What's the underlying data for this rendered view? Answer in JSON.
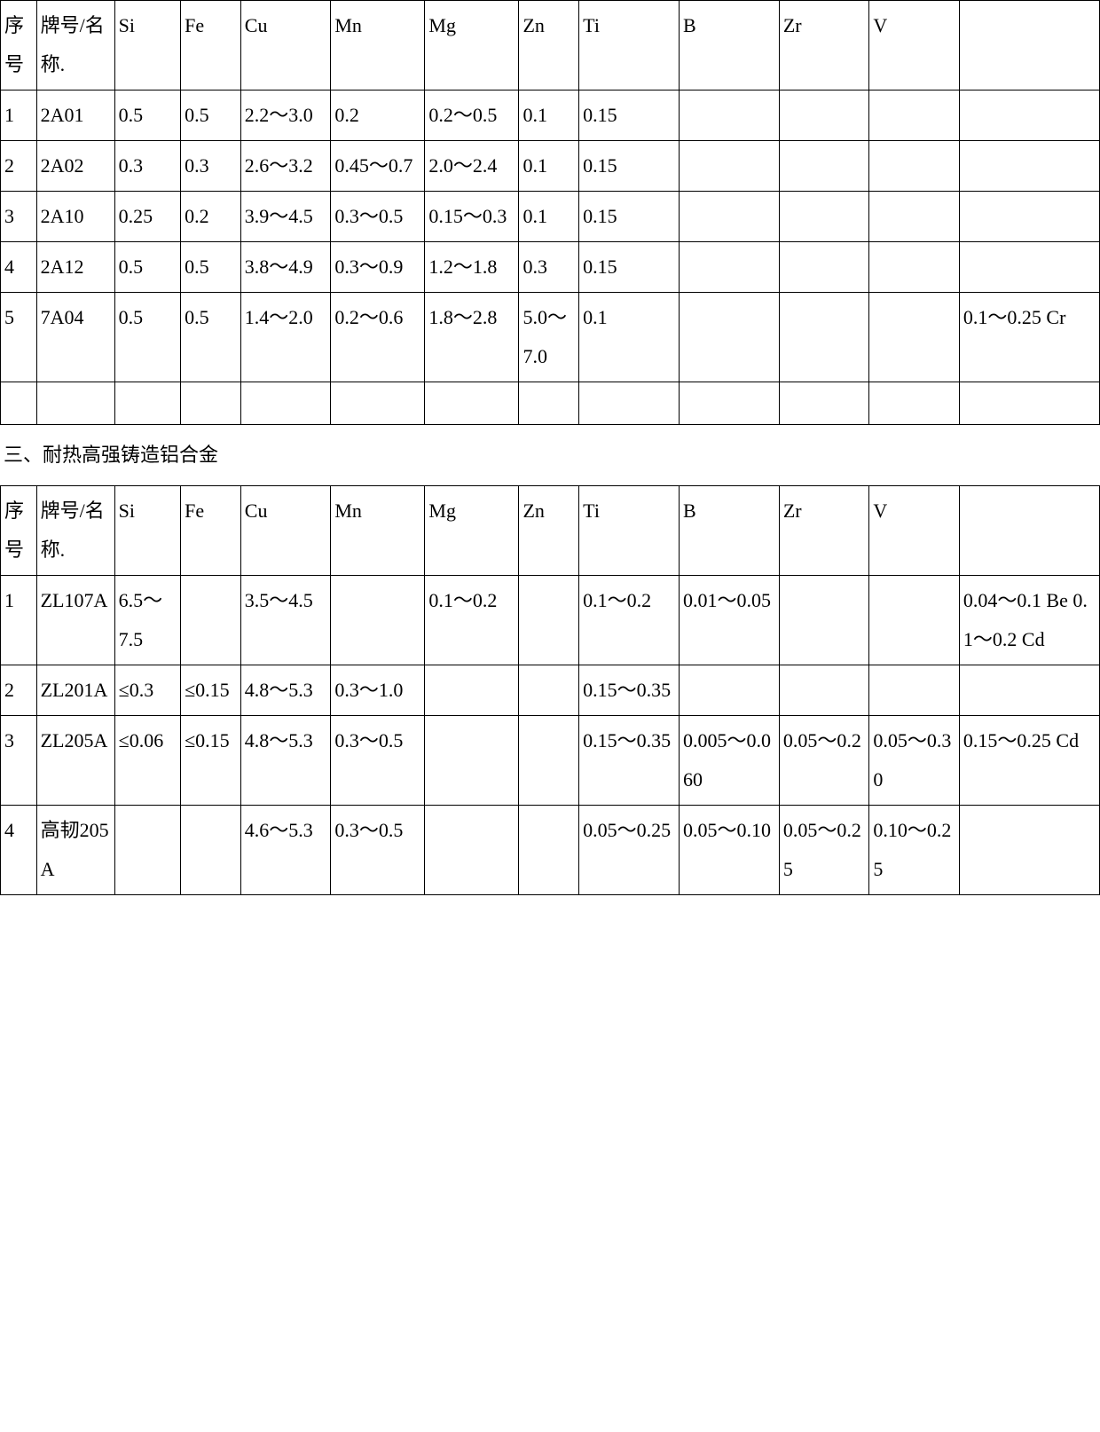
{
  "table1": {
    "columns": [
      "序号",
      "牌号/名称.",
      "Si",
      "Fe",
      "Cu",
      "Mn",
      "Mg",
      "Zn",
      "Ti",
      "B",
      "Zr",
      "V",
      ""
    ],
    "rows": [
      [
        "1",
        "2A01",
        "0.5",
        "0.5",
        "2.2～3.0",
        "0.2",
        "0.2～0.5",
        "0.1",
        "0.15",
        "",
        "",
        "",
        ""
      ],
      [
        "2",
        "2A02",
        "0.3",
        "0.3",
        "2.6～3.2",
        "0.45～0.7",
        "2.0～2.4",
        "0.1",
        "0.15",
        "",
        "",
        "",
        ""
      ],
      [
        "3",
        "2A10",
        "0.25",
        "0.2",
        "3.9～4.5",
        "0.3～0.5",
        "0.15～0.3",
        "0.1",
        "0.15",
        "",
        "",
        "",
        ""
      ],
      [
        "4",
        "2A12",
        "0.5",
        "0.5",
        "3.8～4.9",
        "0.3～0.9",
        "1.2～1.8",
        "0.3",
        "0.15",
        "",
        "",
        "",
        ""
      ],
      [
        "5",
        "7A04",
        "0.5",
        "0.5",
        "1.4～2.0",
        "0.2～0.6",
        "1.8～2.8",
        "5.0～7.0",
        "0.1",
        "",
        "",
        "",
        "0.1～0.25 Cr"
      ]
    ]
  },
  "section2_title": "三、耐热高强铸造铝合金",
  "table2": {
    "columns": [
      "序号",
      "牌号/名称.",
      "Si",
      "Fe",
      "Cu",
      "Mn",
      "Mg",
      "Zn",
      "Ti",
      "B",
      "Zr",
      "V",
      ""
    ],
    "rows": [
      [
        "1",
        "ZL107A",
        "6.5～7.5",
        "",
        "3.5～4.5",
        "",
        "0.1～0.2",
        "",
        "0.1～0.2",
        "0.01～0.05",
        "",
        "",
        "0.04～0.1 Be 0.1～0.2 Cd"
      ],
      [
        "2",
        "ZL201A",
        "≤0.3",
        "≤0.15",
        "4.8～5.3",
        "0.3～1.0",
        "",
        "",
        "0.15～0.35",
        "",
        "",
        "",
        ""
      ],
      [
        "3",
        "ZL205A",
        "≤0.06",
        "≤0.15",
        "4.8～5.3",
        "0.3～0.5",
        "",
        "",
        "0.15～0.35",
        "0.005～0.060",
        "0.05～0.2",
        "0.05～0.30",
        "0.15～0.25 Cd"
      ],
      [
        "4",
        "高韧205A",
        "",
        "",
        "4.6～5.3",
        "0.3～0.5",
        "",
        "",
        "0.05～0.25",
        "0.05～0.10",
        "0.05～0.25",
        "0.10～0.25",
        ""
      ]
    ]
  },
  "column_classes": [
    "c-xh",
    "c-name",
    "c-si",
    "c-fe",
    "c-cu",
    "c-mn",
    "c-mg",
    "c-zn",
    "c-ti",
    "c-b",
    "c-zr",
    "c-v",
    "c-ex"
  ]
}
